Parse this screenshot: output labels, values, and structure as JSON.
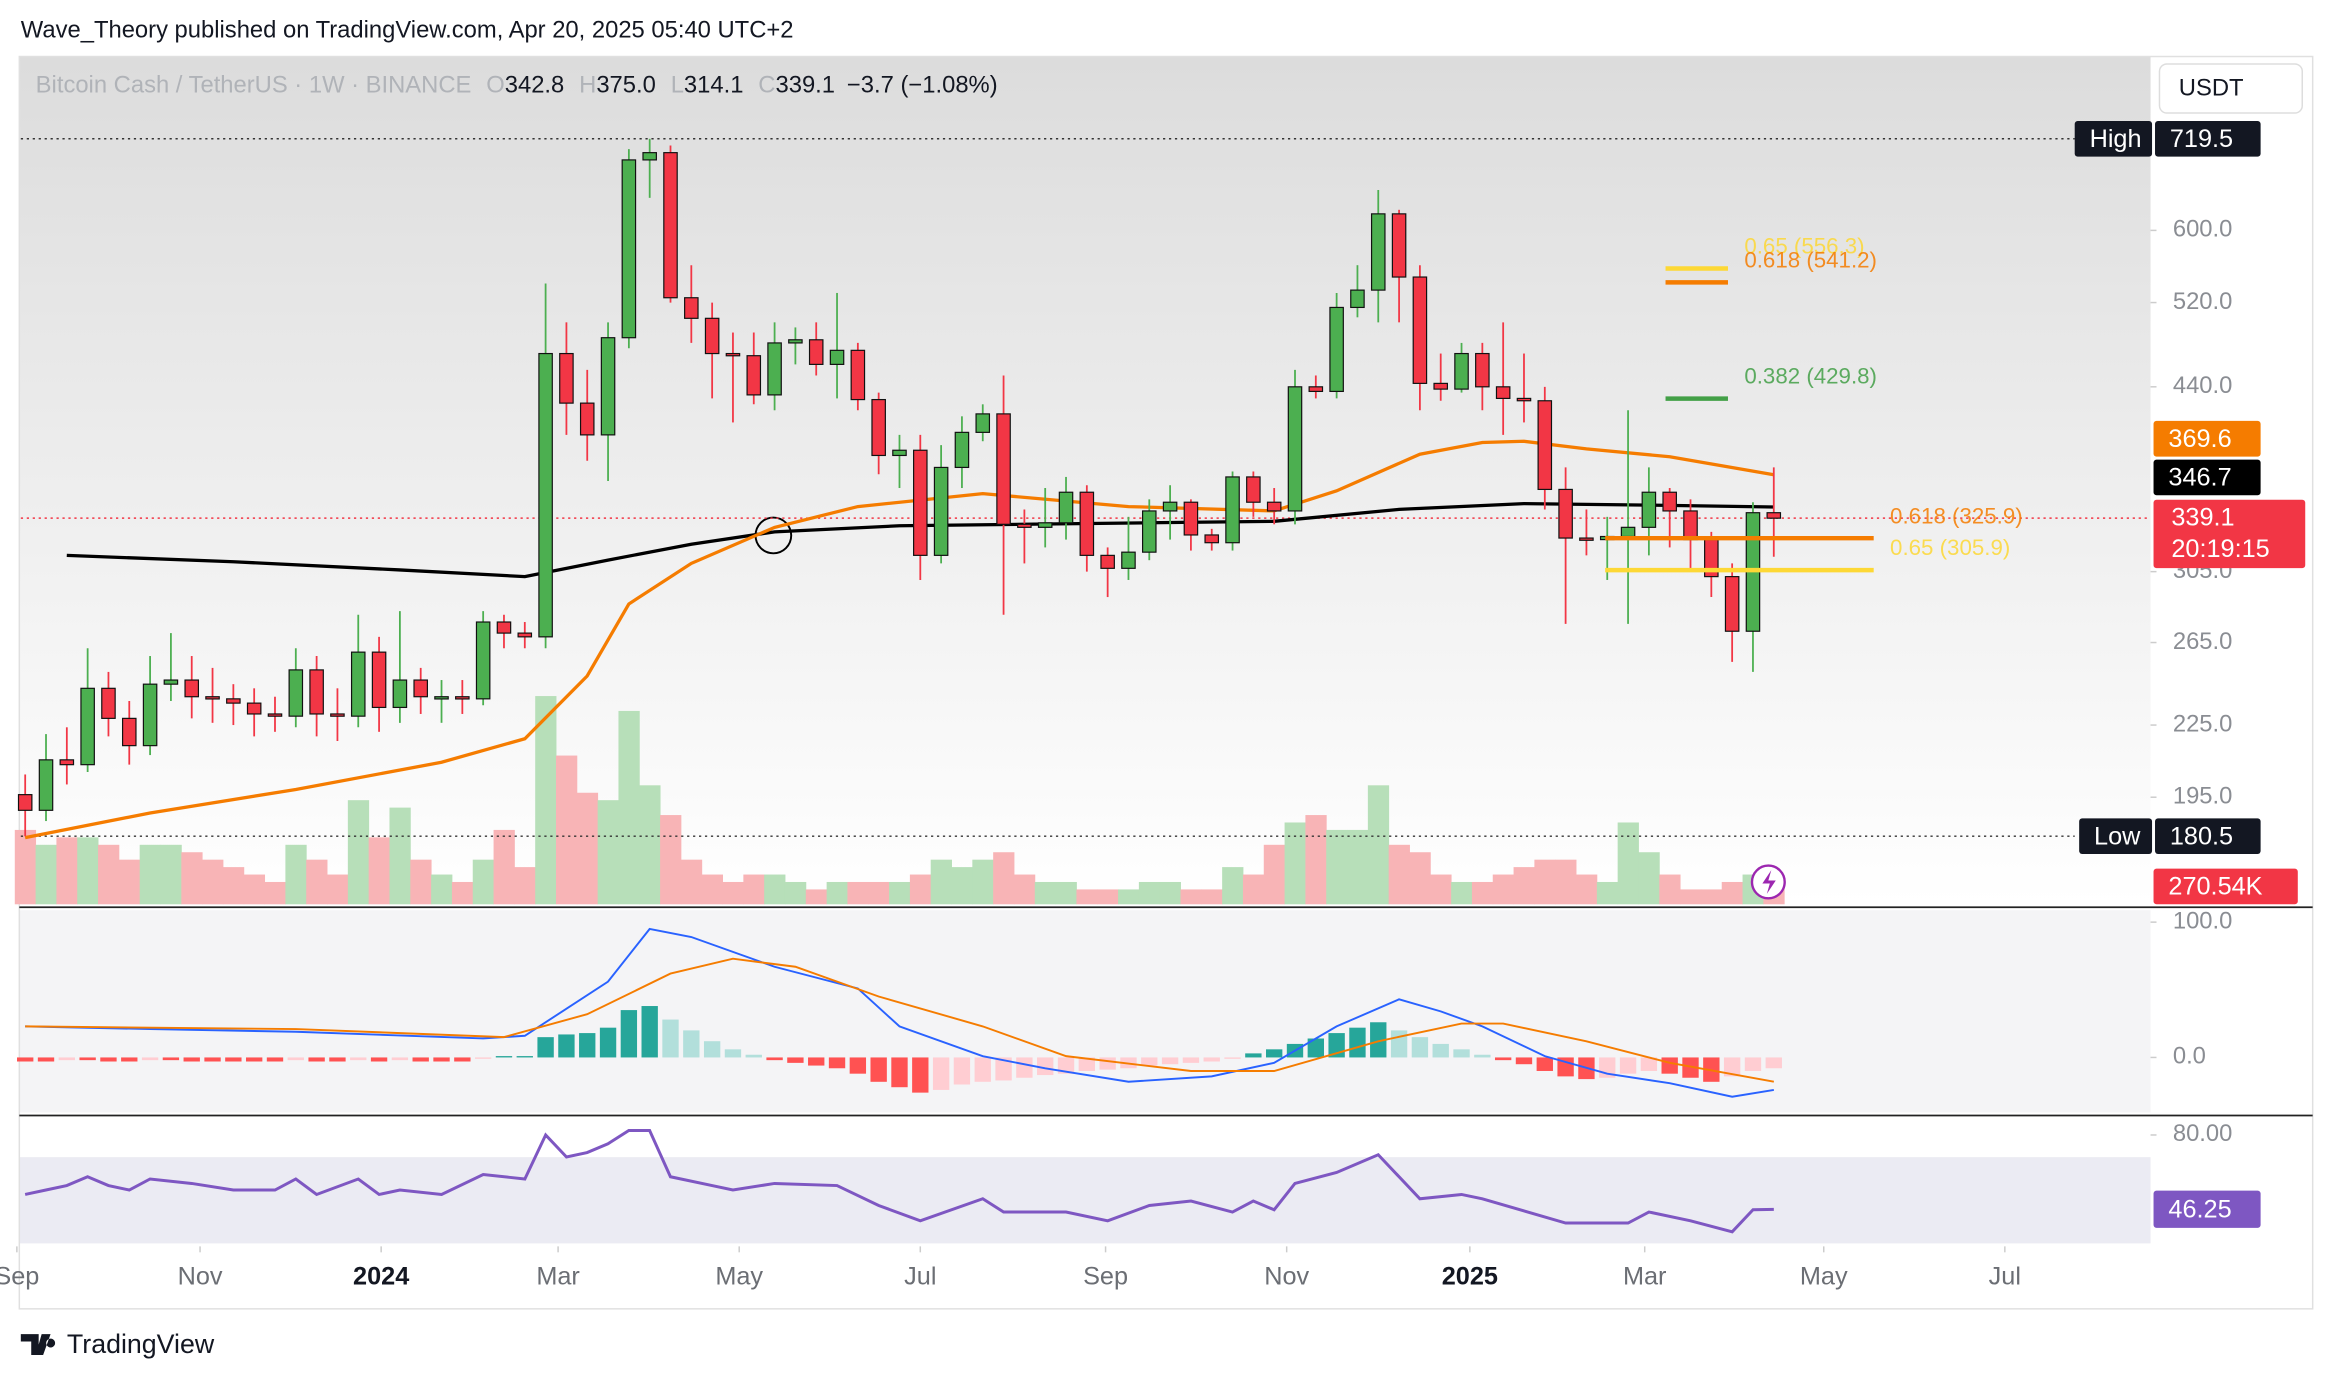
{
  "header": {
    "publisher": "Wave_Theory published on TradingView.com, Apr 20, 2025 05:40 UTC+2",
    "brand": "TradingView",
    "currency_button": "USDT"
  },
  "chart_data": {
    "type": "candlestick",
    "symbol": "Bitcoin Cash / TetherUS · 1W · BINANCE",
    "legend_letters": [
      "O",
      "H",
      "L",
      "C"
    ],
    "legend_values": [
      "342.8",
      "375.0",
      "314.1",
      "339.1"
    ],
    "change": "−3.7 (−1.08%)",
    "open": [
      196,
      190,
      210,
      208,
      242,
      228,
      216,
      244,
      246,
      238,
      237,
      235,
      230,
      229,
      251,
      230,
      229,
      260,
      233,
      246,
      238,
      238,
      237,
      276,
      270,
      268,
      470,
      426,
      400,
      485,
      690,
      700,
      525,
      504,
      470,
      468,
      433,
      480,
      483,
      460,
      473,
      429,
      384,
      388,
      315,
      375,
      402,
      417,
      335,
      333,
      336,
      357,
      315,
      307,
      317,
      344,
      350,
      328,
      323,
      368,
      350,
      344,
      440,
      436,
      515,
      533,
      620,
      547,
      443,
      438,
      470,
      440,
      430,
      428,
      359,
      326,
      325,
      327,
      333,
      357,
      344,
      325,
      302,
      271,
      342.8
    ],
    "high": [
      204,
      221,
      224,
      262,
      250,
      236,
      258,
      270,
      258,
      252,
      244,
      242,
      238,
      262,
      258,
      242,
      280,
      268,
      282,
      252,
      246,
      246,
      282,
      280,
      276,
      540,
      500,
      455,
      500,
      705,
      719.5,
      710,
      560,
      520,
      490,
      490,
      500,
      495,
      500,
      530,
      480,
      435,
      400,
      400,
      392,
      415,
      425,
      450,
      345,
      360,
      368,
      362,
      320,
      340,
      352,
      362,
      352,
      332,
      372,
      372,
      360,
      455,
      450,
      530,
      560,
      650,
      625,
      560,
      470,
      480,
      480,
      500,
      470,
      440,
      375,
      345,
      340,
      420,
      375,
      360,
      352,
      330,
      310,
      350,
      375
    ],
    "low": [
      180.5,
      186,
      200,
      205,
      220,
      208,
      212,
      236,
      228,
      226,
      225,
      220,
      222,
      224,
      220,
      218,
      224,
      222,
      226,
      230,
      226,
      230,
      234,
      262,
      262,
      262,
      400,
      380,
      365,
      475,
      640,
      520,
      480,
      430,
      410,
      425,
      420,
      460,
      450,
      430,
      420,
      370,
      360,
      300,
      310,
      360,
      395,
      280,
      310,
      320,
      325,
      305,
      290,
      300,
      312,
      325,
      318,
      318,
      318,
      340,
      335,
      335,
      430,
      430,
      505,
      500,
      500,
      420,
      428,
      435,
      420,
      400,
      410,
      345,
      275,
      315,
      300,
      275,
      315,
      320,
      305,
      290,
      255,
      250,
      314.1
    ],
    "close": [
      190,
      210,
      208,
      242,
      228,
      216,
      244,
      246,
      238,
      237,
      235,
      230,
      229,
      251,
      230,
      229,
      260,
      233,
      246,
      238,
      238,
      237,
      276,
      270,
      268,
      470,
      426,
      400,
      485,
      690,
      700,
      525,
      504,
      470,
      468,
      433,
      480,
      483,
      460,
      473,
      429,
      384,
      388,
      315,
      375,
      402,
      417,
      335,
      333,
      336,
      357,
      315,
      307,
      317,
      344,
      350,
      328,
      323,
      368,
      350,
      344,
      440,
      436,
      515,
      533,
      620,
      547,
      443,
      438,
      470,
      440,
      430,
      428,
      359,
      326,
      325,
      327,
      333,
      357,
      344,
      325,
      302,
      271,
      342.8,
      339.1
    ],
    "up_color": "#4caf50",
    "down_color": "#f23645",
    "ylim": [
      157.7,
      847
    ],
    "log_scale": true,
    "yticks": [
      {
        "value": 195,
        "label": "195.0"
      },
      {
        "value": 225,
        "label": "225.0"
      },
      {
        "value": 265,
        "label": "265.0"
      },
      {
        "value": 305,
        "label": "305.0"
      },
      {
        "value": 440,
        "label": "440.0"
      },
      {
        "value": 520,
        "label": "520.0"
      },
      {
        "value": 600,
        "label": "600.0"
      }
    ],
    "xlim": [
      -0.21,
      102.1
    ],
    "xticks": [
      {
        "value": -0.4,
        "label": "Sep"
      },
      {
        "value": 8.4,
        "label": "Nov"
      },
      {
        "value": 17.1,
        "label": "2024"
      },
      {
        "value": 25.6,
        "label": "Mar"
      },
      {
        "value": 34.3,
        "label": "May"
      },
      {
        "value": 43,
        "label": "Jul"
      },
      {
        "value": 51.9,
        "label": "Sep"
      },
      {
        "value": 60.6,
        "label": "Nov"
      },
      {
        "value": 69.4,
        "label": "2025"
      },
      {
        "value": 77.8,
        "label": "Mar"
      },
      {
        "value": 86.4,
        "label": "May"
      },
      {
        "value": 95.1,
        "label": "Jul"
      }
    ],
    "lines": [
      {
        "color": "#000000",
        "x": [
          2,
          10,
          18,
          24,
          28,
          32,
          36,
          42,
          48,
          54,
          60,
          66,
          72,
          78,
          84
        ],
        "values": [
          315,
          311,
          306,
          302,
          312,
          322,
          330,
          334,
          335,
          336,
          337,
          345,
          349,
          348,
          346.7
        ]
      },
      {
        "color": "#f57c00",
        "x": [
          0,
          6,
          13,
          20,
          24,
          27,
          29,
          32,
          36,
          40,
          46,
          53,
          60,
          63,
          67,
          70,
          72,
          75,
          79,
          84
        ],
        "values": [
          180,
          189,
          198,
          209,
          219,
          248,
          286,
          310,
          333,
          347,
          356,
          347,
          344,
          358,
          385,
          394,
          395,
          389,
          383,
          369.6
        ]
      }
    ],
    "fib_levels": [
      {
        "text": "0.65 (556.3)",
        "value": 556.3,
        "color": "#fdd835",
        "span": [
          78.8,
          81.8
        ]
      },
      {
        "text": "0.618 (541.2)",
        "value": 541.2,
        "color": "#f57c00",
        "span": [
          78.8,
          81.8
        ]
      },
      {
        "text": "0.382 (429.8)",
        "value": 429.8,
        "color": "#43a047",
        "span": [
          78.8,
          81.8
        ]
      },
      {
        "text": "0.618 (325.9)",
        "value": 325.9,
        "color": "#f57c00",
        "span": [
          75.9,
          88.8
        ]
      },
      {
        "text": "0.65 (305.9)",
        "value": 305.9,
        "color": "#fdd835",
        "span": [
          75.9,
          88.8
        ]
      }
    ],
    "high_tag": {
      "label": "High",
      "value": 719.5
    },
    "low_tag": {
      "label": "Low",
      "value": 180.5
    },
    "countdown": "20:19:15",
    "volume": {
      "values": [
        750,
        600,
        675,
        675,
        600,
        450,
        600,
        600,
        525,
        450,
        375,
        300,
        225,
        600,
        450,
        300,
        1050,
        675,
        975,
        450,
        300,
        225,
        450,
        750,
        375,
        2100,
        1500,
        1125,
        1050,
        1950,
        1200,
        900,
        450,
        300,
        225,
        300,
        300,
        225,
        150,
        225,
        225,
        225,
        225,
        300,
        450,
        375,
        450,
        525,
        300,
        225,
        225,
        150,
        150,
        150,
        225,
        225,
        150,
        150,
        375,
        300,
        600,
        825,
        900,
        750,
        750,
        1200,
        600,
        525,
        300,
        225,
        225,
        300,
        375,
        450,
        450,
        300,
        225,
        825,
        525,
        300,
        150,
        150,
        225,
        300,
        270.54
      ],
      "last_label": "270.54K",
      "up_color": "#b7dfb9",
      "down_color": "#f8b4b6"
    },
    "macd": {
      "ylim": [
        -40.7,
        108.8
      ],
      "yticks": [
        {
          "value": 0,
          "label": "0.0"
        },
        {
          "value": 100,
          "label": "100.0"
        }
      ],
      "histogram": [
        -3,
        -3,
        -2,
        -2,
        -3,
        -3,
        -2,
        -2,
        -3,
        -3,
        -3,
        -3,
        -3,
        -2,
        -3,
        -3,
        -2,
        -3,
        -2,
        -3,
        -3,
        -3,
        -1,
        1,
        1,
        15,
        17,
        18,
        22,
        35,
        38,
        28,
        20,
        12,
        6,
        2,
        -2,
        -4,
        -6,
        -8,
        -12,
        -18,
        -22,
        -26,
        -24,
        -20,
        -18,
        -17,
        -15,
        -13,
        -12,
        -10,
        -9,
        -8,
        -6,
        -5,
        -4,
        -3,
        -1,
        3,
        6,
        10,
        14,
        18,
        22,
        26,
        20,
        15,
        10,
        6,
        2,
        -2,
        -5,
        -10,
        -14,
        -16,
        -15,
        -12,
        -10,
        -12,
        -15,
        -18,
        -14,
        -10,
        -8
      ],
      "macd": {
        "color": "#2962ff",
        "x": [
          0,
          6,
          13,
          22,
          24,
          26,
          28,
          30,
          32,
          36,
          40,
          42,
          46,
          49,
          53,
          57,
          60,
          63,
          66,
          68,
          70,
          73,
          76,
          79,
          82,
          84
        ],
        "values": [
          23,
          21,
          19,
          14,
          16,
          36,
          56,
          95,
          89,
          67,
          51,
          23,
          1,
          -8,
          -18,
          -14,
          -4,
          23,
          43,
          34,
          23,
          1,
          -12,
          -19,
          -29,
          -24
        ]
      },
      "signal": {
        "color": "#f57c00",
        "x": [
          0,
          13,
          23,
          27,
          31,
          34,
          37,
          41,
          46,
          50,
          56,
          60,
          65,
          69,
          71,
          75,
          79,
          84
        ],
        "values": [
          23,
          21,
          15,
          32,
          62,
          73,
          67,
          45,
          23,
          1,
          -10,
          -10,
          12,
          25,
          25,
          12,
          -4,
          -18
        ]
      }
    },
    "rsi": {
      "color": "#7e57c2",
      "ylim": [
        29.4,
        87.5
      ],
      "yticks": [
        {
          "value": 80,
          "label": "80.00"
        }
      ],
      "x": [
        0,
        1,
        2,
        3,
        4,
        5,
        6,
        8,
        10,
        12,
        13,
        14,
        16,
        17,
        18,
        20,
        22,
        24,
        25,
        26,
        27,
        28,
        29,
        30,
        31,
        33,
        34,
        36,
        39,
        41,
        43,
        46,
        47,
        50,
        52,
        54,
        56,
        58,
        59,
        60,
        61,
        63,
        65,
        67,
        69,
        70,
        74,
        77,
        78,
        80,
        82,
        83,
        84
      ],
      "values": [
        53,
        55,
        57,
        61,
        57,
        55,
        60,
        58,
        55,
        55,
        60,
        53,
        60,
        53,
        55,
        53,
        62,
        60,
        80,
        70,
        72,
        76,
        82,
        82,
        61,
        57,
        55,
        58,
        57,
        48,
        41,
        51,
        45,
        45,
        41,
        48,
        50,
        45,
        50,
        46,
        58,
        63,
        71,
        51,
        53,
        51,
        40,
        40,
        45,
        41,
        36,
        46,
        46.25
      ]
    }
  }
}
